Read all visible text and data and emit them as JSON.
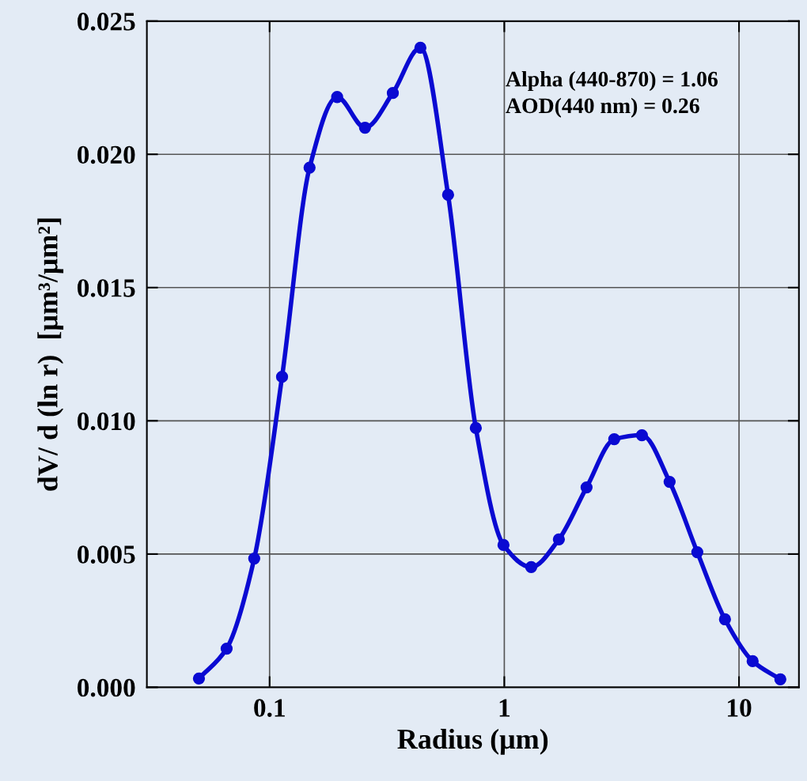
{
  "chart_data": {
    "type": "line",
    "xlabel": "Radius (μm)",
    "ylabel": "dV/ d (ln r)  [μm³/μm²]",
    "x": [
      0.05,
      0.0656,
      0.086,
      0.113,
      0.148,
      0.194,
      0.255,
      0.335,
      0.439,
      0.576,
      0.756,
      0.992,
      1.302,
      1.708,
      2.241,
      2.94,
      3.857,
      5.061,
      6.641,
      8.713,
      11.43,
      15.0
    ],
    "series": [
      {
        "color": "#0a0ad2",
        "values": [
          0.00033,
          0.00145,
          0.00483,
          0.01165,
          0.0195,
          0.02215,
          0.021,
          0.0223,
          0.024,
          0.01848,
          0.00973,
          0.00534,
          0.00451,
          0.00555,
          0.0075,
          0.00931,
          0.00946,
          0.00771,
          0.00507,
          0.00255,
          0.00098,
          0.0003
        ]
      }
    ],
    "log": "x",
    "xlim": [
      0.03,
      18
    ],
    "xticks": [
      0.1,
      1,
      10
    ],
    "ylim": [
      0,
      0.025
    ],
    "yticks": [
      {
        "value": 0,
        "label": "0.000"
      },
      {
        "value": 0.005,
        "label": "0.005"
      },
      {
        "value": 0.01,
        "label": "0.010"
      },
      {
        "value": 0.015,
        "label": "0.015"
      },
      {
        "value": 0.02,
        "label": "0.020"
      },
      {
        "value": 0.025,
        "label": "0.025"
      }
    ],
    "grid": true,
    "marker": "circle",
    "line_style": "solid",
    "annotations": [
      "Alpha (440-870) = 1.06",
      "AOD(440 nm) = 0.26"
    ]
  }
}
